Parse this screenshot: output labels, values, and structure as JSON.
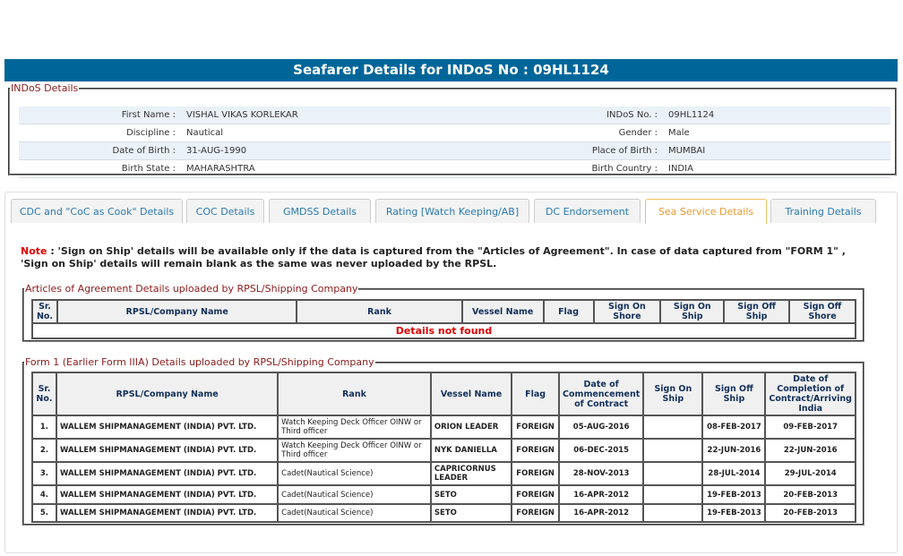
{
  "title": "Seafarer Details for INDoS No : 09HL1124",
  "indos": {
    "legend": "INDoS Details",
    "rows": [
      {
        "l1": "First Name :",
        "v1": "VISHAL VIKAS KORLEKAR",
        "l2": "INDoS No. :",
        "v2": "09HL1124"
      },
      {
        "l1": "Discipline :",
        "v1": "Nautical",
        "l2": "Gender :",
        "v2": "Male"
      },
      {
        "l1": "Date of Birth :",
        "v1": "31-AUG-1990",
        "l2": "Place of Birth :",
        "v2": "MUMBAI"
      },
      {
        "l1": "Birth State :",
        "v1": "MAHARASHTRA",
        "l2": "Birth Country :",
        "v2": "INDIA"
      }
    ]
  },
  "tabs": [
    "CDC and \"CoC as Cook\" Details",
    "COC Details",
    "GMDSS Details",
    "Rating [Watch Keeping/AB]",
    "DC Endorsement",
    "Sea Service Details",
    "Training Details"
  ],
  "active_tab": "Sea Service Details",
  "note": {
    "label": "Note",
    "text": ": 'Sign on Ship' details will be available only if the data is captured from the \"Articles of Agreement\". In case of data captured from \"FORM 1\" , 'Sign on Ship' details will remain blank as the same was never uploaded by the RPSL."
  },
  "articles": {
    "legend": "Articles of Agreement Details uploaded by RPSL/Shipping Company",
    "headers": [
      "Sr. No.",
      "RPSL/Company Name",
      "Rank",
      "Vessel Name",
      "Flag",
      "Sign On Shore",
      "Sign On Ship",
      "Sign Off Ship",
      "Sign Off Shore"
    ],
    "empty": "Details not found"
  },
  "form1": {
    "legend": "Form 1 (Earlier Form IIIA) Details uploaded by RPSL/Shipping Company",
    "headers": [
      "Sr. No.",
      "RPSL/Company Name",
      "Rank",
      "Vessel Name",
      "Flag",
      "Date of Commencement of Contract",
      "Sign On Ship",
      "Sign Off Ship",
      "Date of Completion of Contract/Arriving India"
    ],
    "rows": [
      [
        "1.",
        "WALLEM SHIPMANAGEMENT (INDIA) PVT. LTD.",
        "Watch Keeping Deck Officer OINW or Third officer",
        "ORION LEADER",
        "FOREIGN",
        "05-AUG-2016",
        "",
        "08-FEB-2017",
        "09-FEB-2017"
      ],
      [
        "2.",
        "WALLEM SHIPMANAGEMENT (INDIA) PVT. LTD.",
        "Watch Keeping Deck Officer OINW or Third officer",
        "NYK DANIELLA",
        "FOREIGN",
        "06-DEC-2015",
        "",
        "22-JUN-2016",
        "22-JUN-2016"
      ],
      [
        "3.",
        "WALLEM SHIPMANAGEMENT (INDIA) PVT. LTD.",
        "Cadet(Nautical Science)",
        "CAPRICORNUS LEADER",
        "FOREIGN",
        "28-NOV-2013",
        "",
        "28-JUL-2014",
        "29-JUL-2014"
      ],
      [
        "4.",
        "WALLEM SHIPMANAGEMENT (INDIA) PVT. LTD.",
        "Cadet(Nautical Science)",
        "SETO",
        "FOREIGN",
        "16-APR-2012",
        "",
        "19-FEB-2013",
        "20-FEB-2013"
      ],
      [
        "5.",
        "WALLEM SHIPMANAGEMENT (INDIA) PVT. LTD.",
        "Cadet(Nautical Science)",
        "SETO",
        "FOREIGN",
        "16-APR-2012",
        "",
        "19-FEB-2013",
        "20-FEB-2013"
      ]
    ]
  }
}
